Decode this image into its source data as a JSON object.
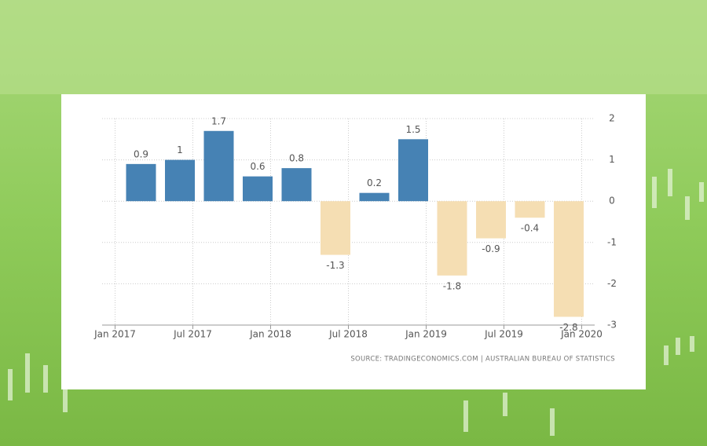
{
  "chart_data": {
    "type": "bar",
    "x": [
      "2017-03",
      "2017-06",
      "2017-09",
      "2017-12",
      "2018-03",
      "2018-06",
      "2018-09",
      "2018-12",
      "2019-03",
      "2019-06",
      "2019-09",
      "2019-12"
    ],
    "values": [
      0.9,
      1,
      1.7,
      0.6,
      0.8,
      -1.3,
      0.2,
      1.5,
      -1.8,
      -0.9,
      -0.4,
      -2.8
    ],
    "color": "#4682b4",
    "negative_color": "#f5deb3",
    "xlim": [
      "2016-12",
      "2020-02"
    ],
    "xticks": [
      {
        "value": "2017-01",
        "label": "Jan 2017"
      },
      {
        "value": "2017-07",
        "label": "Jul 2017"
      },
      {
        "value": "2018-01",
        "label": "Jan 2018"
      },
      {
        "value": "2018-07",
        "label": "Jul 2018"
      },
      {
        "value": "2019-01",
        "label": "Jan 2019"
      },
      {
        "value": "2019-07",
        "label": "Jul 2019"
      },
      {
        "value": "2020-01",
        "label": "Jan 2020"
      }
    ],
    "ylim": [
      -3,
      2
    ],
    "yticks": [
      -3,
      -2,
      -1,
      0,
      1,
      2
    ],
    "grid": true,
    "source": "SOURCE: TRADINGECONOMICS.COM  |  AUSTRALIAN BUREAU OF STATISTICS"
  }
}
